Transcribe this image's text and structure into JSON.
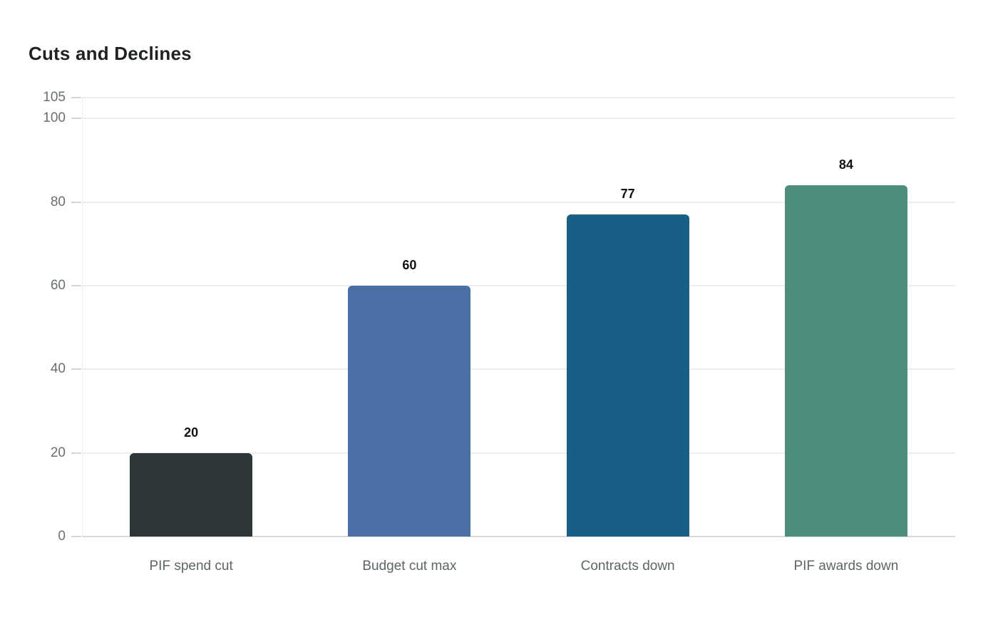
{
  "page": {
    "background": "#ffffff"
  },
  "chart_data": {
    "type": "bar",
    "title": "Cuts and Declines",
    "categories": [
      "PIF spend cut",
      "Budget cut max",
      "Contracts down",
      "PIF awards down"
    ],
    "values": [
      20,
      60,
      77,
      84
    ],
    "value_labels": [
      "20",
      "60",
      "77",
      "84"
    ],
    "bar_colors": [
      "#2c3537",
      "#4b6fa5",
      "#175f85",
      "#4d8d7c"
    ],
    "yticks": [
      0,
      20,
      40,
      60,
      80,
      100,
      105
    ],
    "ylim": [
      0,
      105
    ],
    "xlabel": "",
    "ylabel": "",
    "grid": true,
    "legend_position": "none",
    "colors": {
      "title_text": "#1e2224",
      "value_label_text": "#101213",
      "y_tick_text": "#697072",
      "x_tick_text": "#5d6567",
      "gridline": "#ededed",
      "baseline": "#d6d8d9",
      "background": "#ffffff"
    }
  }
}
